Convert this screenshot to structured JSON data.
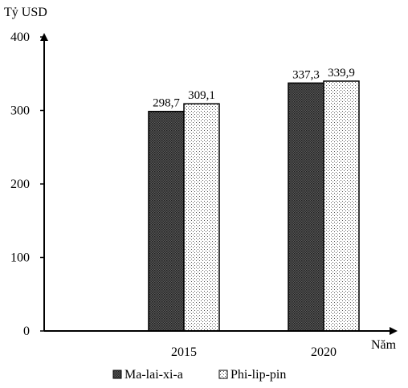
{
  "chart_data": {
    "type": "bar",
    "ylabel": "Tỷ USD",
    "xlabel": "Năm",
    "categories": [
      "2015",
      "2020"
    ],
    "series": [
      {
        "name": "Ma-lai-xi-a",
        "values": [
          298.7,
          337.3
        ],
        "labels": [
          "298,7",
          "337,3"
        ],
        "pattern": "dense-dots-dark"
      },
      {
        "name": "Phi-lip-pin",
        "values": [
          309.1,
          339.9
        ],
        "labels": [
          "309,1",
          "339,9"
        ],
        "pattern": "sparse-dots-light"
      }
    ],
    "ylim": [
      0,
      400
    ],
    "yticks": [
      0,
      100,
      200,
      300,
      400
    ],
    "grid": false,
    "legend_position": "bottom"
  }
}
